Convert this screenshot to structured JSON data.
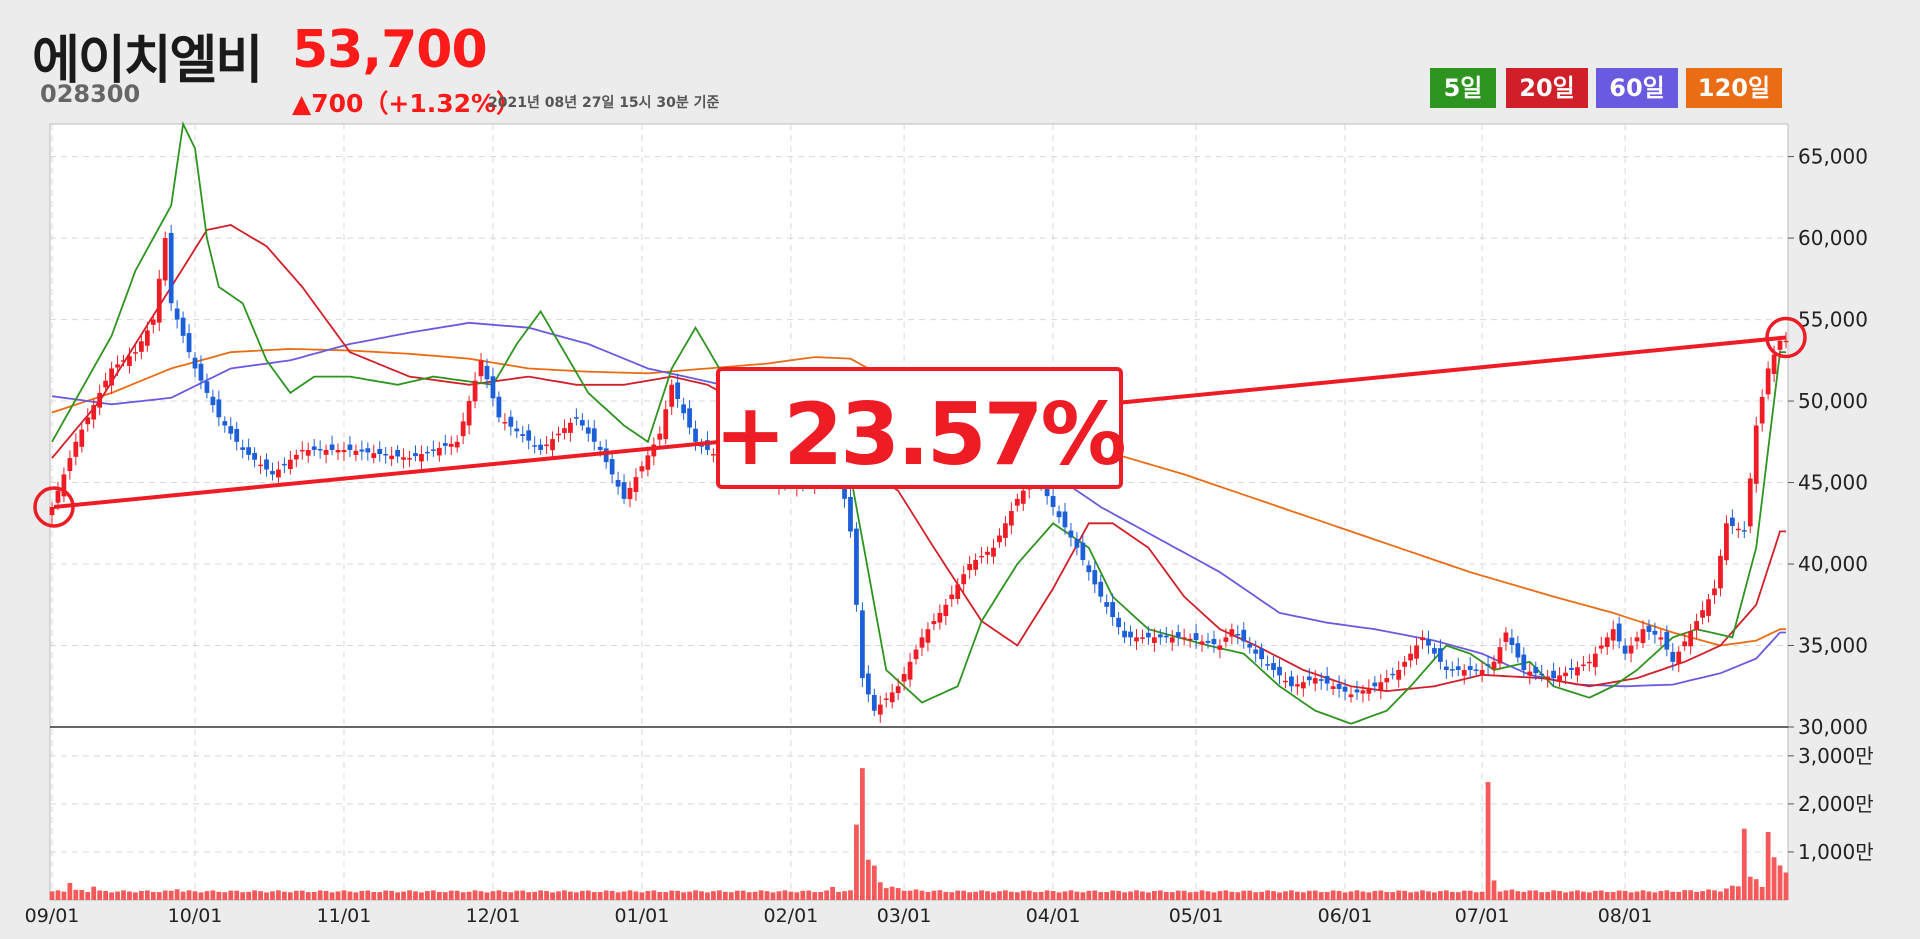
{
  "header": {
    "name": "에이치엘비",
    "price": "53,700",
    "code": "028300",
    "change": "▲700（+1.32%）",
    "date": "2021년 08년 27일 15시 30분 기준"
  },
  "legend": [
    {
      "label": "5일",
      "color": "#2e9420"
    },
    {
      "label": "20일",
      "color": "#d11f2a"
    },
    {
      "label": "60일",
      "color": "#6a5ae0"
    },
    {
      "label": "120일",
      "color": "#ea6d16"
    }
  ],
  "chart_data": {
    "type": "candlestick",
    "x_ticks": [
      "09/01",
      "10/01",
      "11/01",
      "12/01",
      "01/01",
      "02/01",
      "03/01",
      "04/01",
      "05/01",
      "06/01",
      "07/01",
      "08/01"
    ],
    "y_ticks": [
      "30,000",
      "35,000",
      "40,000",
      "45,000",
      "50,000",
      "55,000",
      "60,000",
      "65,000"
    ],
    "ylim": [
      30000,
      67000
    ],
    "volume_ticks": [
      "1,000만",
      "2,000만",
      "3,000만"
    ],
    "volume_lim": [
      0,
      3600
    ],
    "annotation": "+23.57%",
    "trend_start": 43500,
    "trend_end": 53900,
    "close_anchors": [
      [
        0,
        43500
      ],
      [
        4,
        47500
      ],
      [
        10,
        52000
      ],
      [
        14,
        53000
      ],
      [
        17,
        55000
      ],
      [
        19,
        60000
      ],
      [
        20,
        56000
      ],
      [
        24,
        52000
      ],
      [
        28,
        49000
      ],
      [
        32,
        47000
      ],
      [
        37,
        45500
      ],
      [
        42,
        47000
      ],
      [
        50,
        47000
      ],
      [
        60,
        46500
      ],
      [
        68,
        47500
      ],
      [
        72,
        52500
      ],
      [
        75,
        49000
      ],
      [
        82,
        47000
      ],
      [
        88,
        49000
      ],
      [
        92,
        47000
      ],
      [
        96,
        44000
      ],
      [
        102,
        48000
      ],
      [
        104,
        51000
      ],
      [
        108,
        47500
      ],
      [
        116,
        45500
      ],
      [
        122,
        45000
      ],
      [
        128,
        45000
      ],
      [
        132,
        46000
      ],
      [
        134,
        42000
      ],
      [
        136,
        33000
      ],
      [
        138,
        31000
      ],
      [
        142,
        32500
      ],
      [
        146,
        35500
      ],
      [
        150,
        37500
      ],
      [
        154,
        40000
      ],
      [
        158,
        41000
      ],
      [
        162,
        44000
      ],
      [
        165,
        45500
      ],
      [
        168,
        43500
      ],
      [
        172,
        41000
      ],
      [
        176,
        38000
      ],
      [
        180,
        35500
      ],
      [
        190,
        35500
      ],
      [
        196,
        35000
      ],
      [
        198,
        36000
      ],
      [
        202,
        34500
      ],
      [
        208,
        32500
      ],
      [
        212,
        33000
      ],
      [
        218,
        32000
      ],
      [
        222,
        32500
      ],
      [
        226,
        33500
      ],
      [
        230,
        35500
      ],
      [
        234,
        33500
      ],
      [
        240,
        33500
      ],
      [
        242,
        34000
      ],
      [
        244,
        35800
      ],
      [
        247,
        33500
      ],
      [
        252,
        33000
      ],
      [
        258,
        34000
      ],
      [
        262,
        36000
      ],
      [
        264,
        34500
      ],
      [
        267,
        36000
      ],
      [
        270,
        35500
      ],
      [
        272,
        34000
      ],
      [
        276,
        36500
      ],
      [
        279,
        38500
      ],
      [
        281,
        42500
      ],
      [
        284,
        42000
      ],
      [
        286,
        48500
      ],
      [
        288,
        52000
      ],
      [
        290,
        53700
      ]
    ],
    "ma5_anchors": [
      [
        0,
        47500
      ],
      [
        10,
        54000
      ],
      [
        14,
        58000
      ],
      [
        17,
        60000
      ],
      [
        20,
        62000
      ],
      [
        22,
        67000
      ],
      [
        24,
        65500
      ],
      [
        26,
        60000
      ],
      [
        28,
        57000
      ],
      [
        32,
        56000
      ],
      [
        36,
        52500
      ],
      [
        40,
        50500
      ],
      [
        44,
        51500
      ],
      [
        50,
        51500
      ],
      [
        58,
        51000
      ],
      [
        64,
        51500
      ],
      [
        74,
        51000
      ],
      [
        78,
        53500
      ],
      [
        82,
        55500
      ],
      [
        86,
        53000
      ],
      [
        90,
        50500
      ],
      [
        96,
        48500
      ],
      [
        100,
        47500
      ],
      [
        104,
        52000
      ],
      [
        108,
        54500
      ],
      [
        112,
        52000
      ],
      [
        120,
        48500
      ],
      [
        128,
        47000
      ],
      [
        134,
        45500
      ],
      [
        140,
        33500
      ],
      [
        146,
        31500
      ],
      [
        152,
        32500
      ],
      [
        156,
        36500
      ],
      [
        162,
        40000
      ],
      [
        168,
        42500
      ],
      [
        174,
        41000
      ],
      [
        178,
        38000
      ],
      [
        184,
        36000
      ],
      [
        194,
        35000
      ],
      [
        200,
        34500
      ],
      [
        206,
        32500
      ],
      [
        212,
        31000
      ],
      [
        218,
        30200
      ],
      [
        224,
        31000
      ],
      [
        228,
        32500
      ],
      [
        234,
        35000
      ],
      [
        238,
        34500
      ],
      [
        242,
        33500
      ],
      [
        248,
        34000
      ],
      [
        252,
        32500
      ],
      [
        258,
        31800
      ],
      [
        262,
        32500
      ],
      [
        266,
        33500
      ],
      [
        272,
        35500
      ],
      [
        276,
        36000
      ],
      [
        282,
        35500
      ],
      [
        286,
        41000
      ],
      [
        290,
        53000
      ]
    ],
    "ma20_anchors": [
      [
        0,
        46500
      ],
      [
        8,
        50000
      ],
      [
        14,
        53500
      ],
      [
        20,
        57000
      ],
      [
        26,
        60500
      ],
      [
        30,
        60800
      ],
      [
        36,
        59500
      ],
      [
        42,
        57000
      ],
      [
        50,
        53000
      ],
      [
        60,
        51500
      ],
      [
        70,
        51000
      ],
      [
        80,
        51500
      ],
      [
        88,
        51000
      ],
      [
        96,
        51000
      ],
      [
        104,
        51500
      ],
      [
        110,
        51000
      ],
      [
        120,
        49000
      ],
      [
        128,
        47500
      ],
      [
        134,
        46500
      ],
      [
        142,
        44500
      ],
      [
        148,
        41000
      ],
      [
        156,
        36500
      ],
      [
        162,
        35000
      ],
      [
        168,
        38500
      ],
      [
        174,
        42500
      ],
      [
        178,
        42500
      ],
      [
        184,
        41000
      ],
      [
        190,
        38000
      ],
      [
        196,
        36000
      ],
      [
        202,
        35000
      ],
      [
        210,
        33500
      ],
      [
        218,
        32500
      ],
      [
        224,
        32200
      ],
      [
        232,
        32500
      ],
      [
        240,
        33200
      ],
      [
        250,
        33000
      ],
      [
        258,
        32500
      ],
      [
        266,
        33000
      ],
      [
        274,
        34000
      ],
      [
        280,
        35000
      ],
      [
        286,
        37500
      ],
      [
        290,
        42000
      ]
    ],
    "ma60_anchors": [
      [
        0,
        50300
      ],
      [
        10,
        49800
      ],
      [
        20,
        50200
      ],
      [
        30,
        52000
      ],
      [
        40,
        52500
      ],
      [
        50,
        53500
      ],
      [
        60,
        54200
      ],
      [
        70,
        54800
      ],
      [
        80,
        54500
      ],
      [
        90,
        53500
      ],
      [
        100,
        52000
      ],
      [
        110,
        51200
      ],
      [
        118,
        50500
      ],
      [
        126,
        49500
      ],
      [
        134,
        48500
      ],
      [
        142,
        47500
      ],
      [
        150,
        47000
      ],
      [
        160,
        46500
      ],
      [
        168,
        45500
      ],
      [
        176,
        43500
      ],
      [
        186,
        41500
      ],
      [
        196,
        39500
      ],
      [
        206,
        37000
      ],
      [
        214,
        36400
      ],
      [
        222,
        36000
      ],
      [
        232,
        35300
      ],
      [
        240,
        34500
      ],
      [
        248,
        33200
      ],
      [
        256,
        32600
      ],
      [
        264,
        32500
      ],
      [
        272,
        32600
      ],
      [
        280,
        33300
      ],
      [
        286,
        34200
      ],
      [
        290,
        35800
      ]
    ],
    "ma120_anchors": [
      [
        0,
        49300
      ],
      [
        10,
        50500
      ],
      [
        20,
        52000
      ],
      [
        30,
        53000
      ],
      [
        40,
        53200
      ],
      [
        50,
        53100
      ],
      [
        60,
        52900
      ],
      [
        70,
        52600
      ],
      [
        80,
        52000
      ],
      [
        90,
        51800
      ],
      [
        100,
        51700
      ],
      [
        110,
        52000
      ],
      [
        120,
        52300
      ],
      [
        128,
        52700
      ],
      [
        134,
        52600
      ],
      [
        142,
        51000
      ],
      [
        152,
        49500
      ],
      [
        162,
        48500
      ],
      [
        176,
        47000
      ],
      [
        190,
        45500
      ],
      [
        206,
        43500
      ],
      [
        222,
        41500
      ],
      [
        238,
        39500
      ],
      [
        252,
        38000
      ],
      [
        262,
        37000
      ],
      [
        272,
        35800
      ],
      [
        280,
        35000
      ],
      [
        286,
        35300
      ],
      [
        290,
        36000
      ]
    ],
    "volume_anchors": [
      [
        0,
        180
      ],
      [
        2,
        180
      ],
      [
        3,
        400
      ],
      [
        4,
        200
      ],
      [
        6,
        180
      ],
      [
        7,
        300
      ],
      [
        8,
        180
      ],
      [
        20,
        180
      ],
      [
        21,
        250
      ],
      [
        22,
        180
      ],
      [
        100,
        180
      ],
      [
        130,
        180
      ],
      [
        131,
        260
      ],
      [
        132,
        190
      ],
      [
        134,
        180
      ],
      [
        135,
        1600
      ],
      [
        136,
        3100
      ],
      [
        137,
        800
      ],
      [
        138,
        650
      ],
      [
        139,
        400
      ],
      [
        140,
        270
      ],
      [
        144,
        200
      ],
      [
        150,
        180
      ],
      [
        230,
        180
      ],
      [
        240,
        180
      ],
      [
        241,
        2200
      ],
      [
        242,
        400
      ],
      [
        243,
        200
      ],
      [
        250,
        180
      ],
      [
        260,
        180
      ],
      [
        270,
        180
      ],
      [
        280,
        200
      ],
      [
        283,
        300
      ],
      [
        284,
        1650
      ],
      [
        285,
        450
      ],
      [
        286,
        400
      ],
      [
        287,
        300
      ],
      [
        288,
        1500
      ],
      [
        289,
        800
      ],
      [
        290,
        700
      ],
      [
        291,
        650
      ]
    ]
  }
}
